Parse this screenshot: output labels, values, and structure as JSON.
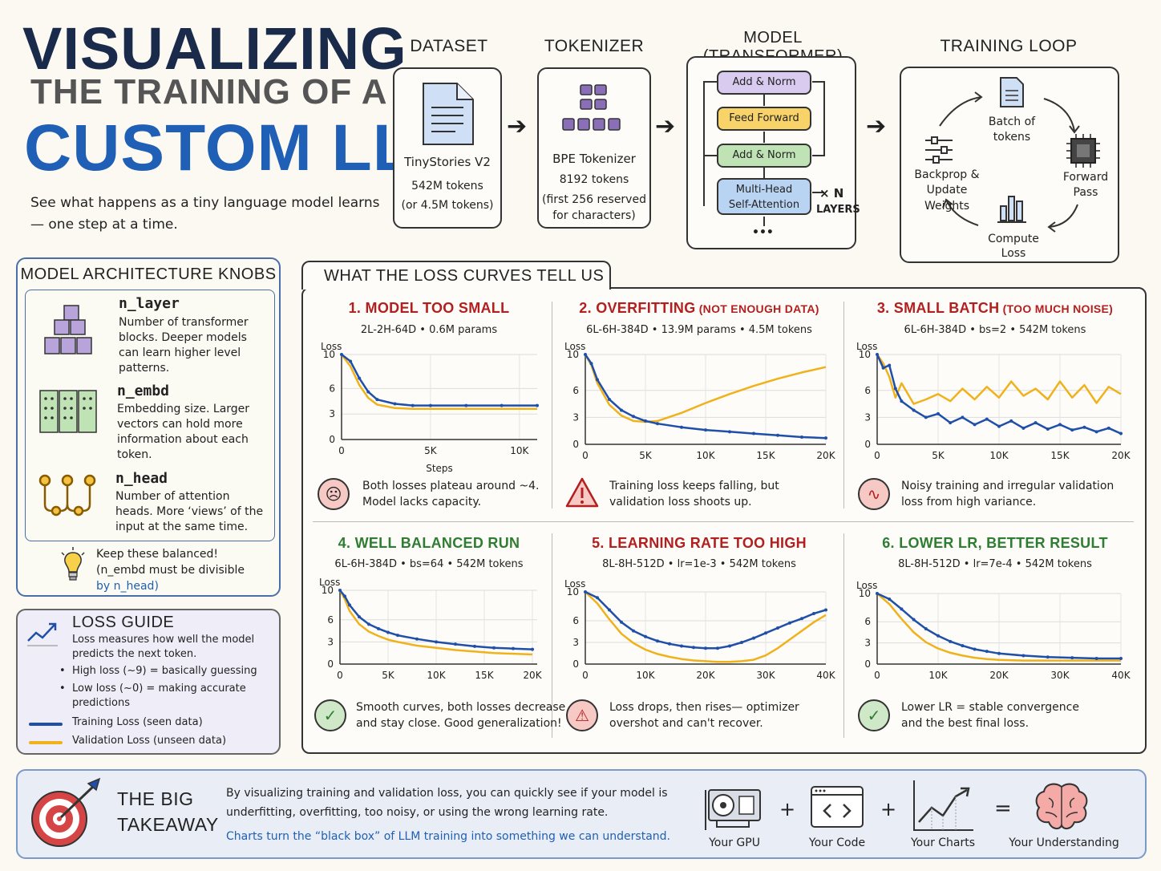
{
  "header": {
    "line1": "VISUALIZING",
    "line2": "THE TRAINING OF A",
    "line3": "CUSTOM LLM",
    "subtitle": "See what happens as a tiny language model learns— one step at a time."
  },
  "pipeline": {
    "dataset": {
      "title": "DATASET",
      "name": "TinyStories V2",
      "tokens": "542M tokens",
      "alt": "(or 4.5M tokens)"
    },
    "tokenizer": {
      "title": "TOKENIZER",
      "name": "BPE Tokenizer",
      "tokens": "8192 tokens",
      "note1": "(first 256 reserved",
      "note2": "for characters)"
    },
    "model": {
      "title": "MODEL (TRANSFORMER)",
      "b1": "Add & Norm",
      "b2": "Feed Forward",
      "b3": "Add & Norm",
      "b4a": "Multi-Head",
      "b4b": "Self-Attention",
      "repeat1": "× N",
      "repeat2": "LAYERS",
      "dots": "•••"
    },
    "loop": {
      "title": "TRAINING LOOP",
      "batch1": "Batch of",
      "batch2": "tokens",
      "fwd1": "Forward",
      "fwd2": "Pass",
      "loss1": "Compute",
      "loss2": "Loss",
      "back1": "Backprop &",
      "back2": "Update Weights"
    }
  },
  "knobs": {
    "title": "MODEL ARCHITECTURE KNOBS",
    "items": [
      {
        "name": "n_layer",
        "color": "#6a3a9a",
        "desc": [
          "Number of transformer",
          "blocks. Deeper models",
          "can learn higher level",
          "patterns."
        ]
      },
      {
        "name": "n_embd",
        "color": "#2e7d32",
        "desc": [
          "Embedding size. Larger",
          "vectors can hold more",
          "information about each",
          "token."
        ]
      },
      {
        "name": "n_head",
        "color": "#c77f00",
        "desc": [
          "Number of attention",
          "heads. More ‘views’ of the",
          "input at the same time."
        ]
      }
    ],
    "tip1": "Keep these balanced!",
    "tip2": "(n_embd must be divisible",
    "tip3": "by n_head)"
  },
  "loss_guide": {
    "title": "LOSS GUIDE",
    "desc1": "Loss measures how well the model",
    "desc2": "predicts the next token.",
    "b1": "High loss (~9) = basically guessing",
    "b2a": "Low loss (~0) = making accurate",
    "b2b": "predictions",
    "train": "Training Loss (seen data)",
    "val": "Validation Loss (unseen data)",
    "train_color": "#1f4fa8",
    "val_color": "#f0b21c"
  },
  "curves": {
    "title": "WHAT THE LOSS CURVES TELL US",
    "panels": [
      {
        "num": "1.",
        "title": "MODEL TOO SMALL",
        "extra": "",
        "color": "#b21f1f",
        "sub": "2L-2H-64D  •  0.6M params",
        "note1": "Both losses plateau around ~4.",
        "note2": "Model lacks capacity.",
        "icon": "☹"
      },
      {
        "num": "2.",
        "title": "OVERFITTING",
        "extra": " (NOT ENOUGH DATA)",
        "color": "#b21f1f",
        "sub": "6L-6H-384D  •  13.9M params  •  4.5M tokens",
        "note1": "Training loss keeps falling, but",
        "note2": "validation loss shoots up.",
        "icon": "!"
      },
      {
        "num": "3.",
        "title": "SMALL BATCH",
        "extra": " (TOO MUCH NOISE)",
        "color": "#b21f1f",
        "sub": "6L-6H-384D  •  bs=2  •  542M tokens",
        "note1": "Noisy training and irregular validation",
        "note2": "loss from high variance.",
        "icon": "∿"
      },
      {
        "num": "4.",
        "title": "WELL BALANCED RUN",
        "extra": "",
        "color": "#2e7d32",
        "sub": "6L-6H-384D  •  bs=64  •  542M tokens",
        "note1": "Smooth curves, both losses decrease",
        "note2": "and stay close. Good generalization!",
        "icon": "✓"
      },
      {
        "num": "5.",
        "title": "LEARNING RATE TOO HIGH",
        "extra": "",
        "color": "#b21f1f",
        "sub": "8L-8H-512D  •  lr=1e-3  •  542M tokens",
        "note1": "Loss drops, then rises— optimizer",
        "note2": "overshot and can't recover.",
        "icon": "⚠"
      },
      {
        "num": "6.",
        "title": "LOWER LR, BETTER RESULT",
        "extra": "",
        "color": "#2e7d32",
        "sub": "8L-8H-512D  •  lr=7e-4  •  542M tokens",
        "note1": "Lower LR = stable convergence",
        "note2": "and the best final loss.",
        "icon": "✓"
      }
    ]
  },
  "chart_data": [
    {
      "type": "line",
      "panel": 1,
      "ylabel": "Loss",
      "xlabel": "Steps",
      "ylim": [
        0,
        10
      ],
      "yticks": [
        0,
        3,
        6,
        10
      ],
      "xlim": [
        0,
        11000
      ],
      "xticks": [
        [
          0,
          "0"
        ],
        [
          5000,
          "5K"
        ],
        [
          10000,
          "10K"
        ]
      ],
      "series": [
        {
          "name": "Training Loss (seen data)",
          "x": [
            0,
            500,
            1000,
            1500,
            2000,
            3000,
            4000,
            5000,
            7000,
            9000,
            11000
          ],
          "y": [
            10,
            9.2,
            7.2,
            5.6,
            4.7,
            4.2,
            4.0,
            4.0,
            4.0,
            4.0,
            4.0
          ]
        },
        {
          "name": "Validation Loss (unseen data)",
          "x": [
            0,
            500,
            1000,
            1500,
            2000,
            3000,
            4000,
            5000,
            7000,
            9000,
            11000
          ],
          "y": [
            10,
            8.6,
            6.4,
            4.9,
            4.1,
            3.7,
            3.6,
            3.6,
            3.6,
            3.6,
            3.6
          ]
        }
      ]
    },
    {
      "type": "line",
      "panel": 2,
      "ylabel": "Loss",
      "ylim": [
        0,
        10
      ],
      "yticks": [
        0,
        3,
        6,
        10
      ],
      "xlim": [
        0,
        20000
      ],
      "xticks": [
        [
          0,
          "0"
        ],
        [
          5000,
          "5K"
        ],
        [
          10000,
          "10K"
        ],
        [
          15000,
          "15K"
        ],
        [
          20000,
          "20K"
        ]
      ],
      "series": [
        {
          "name": "Training Loss (seen data)",
          "x": [
            0,
            500,
            1000,
            2000,
            3000,
            4000,
            5000,
            6000,
            8000,
            10000,
            12000,
            14000,
            16000,
            18000,
            20000
          ],
          "y": [
            10,
            9,
            7.2,
            5,
            3.8,
            3.1,
            2.6,
            2.3,
            1.9,
            1.6,
            1.4,
            1.2,
            1.0,
            0.8,
            0.7
          ]
        },
        {
          "name": "Validation Loss (unseen data)",
          "x": [
            0,
            500,
            1000,
            2000,
            3000,
            4000,
            5000,
            6000,
            8000,
            10000,
            12000,
            14000,
            16000,
            18000,
            20000
          ],
          "y": [
            10,
            8.8,
            6.8,
            4.4,
            3.2,
            2.6,
            2.5,
            2.6,
            3.5,
            4.6,
            5.6,
            6.5,
            7.3,
            8.0,
            8.6
          ]
        }
      ]
    },
    {
      "type": "line",
      "panel": 3,
      "ylabel": "Loss",
      "ylim": [
        0,
        10
      ],
      "yticks": [
        0,
        3,
        6,
        10
      ],
      "xlim": [
        0,
        20000
      ],
      "xticks": [
        [
          0,
          "0"
        ],
        [
          5000,
          "5K"
        ],
        [
          10000,
          "10K"
        ],
        [
          15000,
          "15K"
        ],
        [
          20000,
          "20K"
        ]
      ],
      "series": [
        {
          "name": "Training Loss (seen data)",
          "x": [
            0,
            500,
            1000,
            1500,
            2000,
            3000,
            4000,
            5000,
            6000,
            7000,
            8000,
            9000,
            10000,
            11000,
            12000,
            13000,
            14000,
            15000,
            16000,
            17000,
            18000,
            19000,
            20000
          ],
          "y": [
            10,
            8.5,
            8.8,
            6.2,
            4.8,
            3.8,
            3.0,
            3.4,
            2.4,
            3.0,
            2.2,
            2.8,
            2.0,
            2.6,
            1.8,
            2.4,
            1.7,
            2.2,
            1.6,
            1.9,
            1.4,
            1.8,
            1.2
          ]
        },
        {
          "name": "Validation Loss (unseen data)",
          "x": [
            0,
            500,
            1000,
            1500,
            2000,
            3000,
            4000,
            5000,
            6000,
            7000,
            8000,
            9000,
            10000,
            11000,
            12000,
            13000,
            14000,
            15000,
            16000,
            17000,
            18000,
            19000,
            20000
          ],
          "y": [
            10,
            9,
            7.5,
            5.2,
            6.8,
            4.5,
            5.0,
            5.6,
            4.8,
            6.2,
            5.0,
            6.4,
            5.2,
            7.0,
            5.4,
            6.2,
            5.0,
            7.0,
            5.2,
            6.6,
            4.6,
            6.4,
            5.6
          ]
        }
      ]
    },
    {
      "type": "line",
      "panel": 4,
      "ylabel": "Loss",
      "ylim": [
        0,
        10
      ],
      "yticks": [
        0,
        3,
        6,
        10
      ],
      "xlim": [
        0,
        20500
      ],
      "xticks": [
        [
          0,
          "0"
        ],
        [
          5000,
          "5K"
        ],
        [
          10000,
          "10K"
        ],
        [
          15000,
          "15K"
        ],
        [
          20000,
          "20K"
        ]
      ],
      "series": [
        {
          "name": "Training Loss (seen data)",
          "x": [
            0,
            500,
            1000,
            2000,
            3000,
            4000,
            5000,
            6000,
            8000,
            10000,
            12000,
            14000,
            16000,
            18000,
            20000
          ],
          "y": [
            10,
            9.2,
            8.0,
            6.4,
            5.4,
            4.8,
            4.3,
            3.9,
            3.4,
            3.0,
            2.7,
            2.4,
            2.2,
            2.1,
            2.0
          ]
        },
        {
          "name": "Validation Loss (unseen data)",
          "x": [
            0,
            500,
            1000,
            2000,
            3000,
            4000,
            5000,
            6000,
            8000,
            10000,
            12000,
            14000,
            16000,
            18000,
            20000
          ],
          "y": [
            10,
            8.8,
            7.2,
            5.4,
            4.4,
            3.8,
            3.3,
            3.0,
            2.5,
            2.2,
            1.9,
            1.7,
            1.5,
            1.4,
            1.3
          ]
        }
      ]
    },
    {
      "type": "line",
      "panel": 5,
      "ylabel": "Loss",
      "ylim": [
        0,
        10
      ],
      "yticks": [
        0,
        3,
        6,
        10
      ],
      "xlim": [
        0,
        40000
      ],
      "xticks": [
        [
          0,
          "0"
        ],
        [
          10000,
          "10K"
        ],
        [
          20000,
          "20K"
        ],
        [
          30000,
          "30K"
        ],
        [
          40000,
          "40K"
        ]
      ],
      "series": [
        {
          "name": "Training Loss (seen data)",
          "x": [
            0,
            2000,
            4000,
            6000,
            8000,
            10000,
            12000,
            14000,
            16000,
            18000,
            20000,
            22000,
            24000,
            26000,
            28000,
            30000,
            32000,
            34000,
            36000,
            38000,
            40000
          ],
          "y": [
            10,
            9.2,
            7.5,
            5.8,
            4.6,
            3.8,
            3.2,
            2.8,
            2.5,
            2.3,
            2.2,
            2.2,
            2.5,
            3.0,
            3.6,
            4.3,
            5.0,
            5.7,
            6.3,
            7.0,
            7.5
          ]
        },
        {
          "name": "Validation Loss (unseen data)",
          "x": [
            0,
            2000,
            4000,
            6000,
            8000,
            10000,
            12000,
            14000,
            16000,
            18000,
            20000,
            22000,
            24000,
            26000,
            28000,
            30000,
            32000,
            34000,
            36000,
            38000,
            40000
          ],
          "y": [
            10,
            8.4,
            6.2,
            4.2,
            2.9,
            2.0,
            1.4,
            1.0,
            0.7,
            0.5,
            0.4,
            0.3,
            0.3,
            0.4,
            0.6,
            1.2,
            2.2,
            3.4,
            4.6,
            5.8,
            6.8
          ]
        }
      ]
    },
    {
      "type": "line",
      "panel": 6,
      "ylabel": "Loss",
      "ylim": [
        0,
        10
      ],
      "yticks": [
        0,
        3,
        6,
        10
      ],
      "xlim": [
        0,
        40000
      ],
      "xticks": [
        [
          0,
          "0"
        ],
        [
          10000,
          "10K"
        ],
        [
          20000,
          "20K"
        ],
        [
          30000,
          "30K"
        ],
        [
          40000,
          "40K"
        ]
      ],
      "series": [
        {
          "name": "Training Loss (seen data)",
          "x": [
            0,
            2000,
            4000,
            6000,
            8000,
            10000,
            12000,
            14000,
            16000,
            18000,
            20000,
            24000,
            28000,
            32000,
            36000,
            40000
          ],
          "y": [
            10,
            9.2,
            7.8,
            6.3,
            5.0,
            4.0,
            3.2,
            2.6,
            2.1,
            1.8,
            1.5,
            1.2,
            1.0,
            0.9,
            0.8,
            0.8
          ]
        },
        {
          "name": "Validation Loss (unseen data)",
          "x": [
            0,
            2000,
            4000,
            6000,
            8000,
            10000,
            12000,
            14000,
            16000,
            18000,
            20000,
            24000,
            28000,
            32000,
            36000,
            40000
          ],
          "y": [
            10,
            8.5,
            6.4,
            4.5,
            3.1,
            2.2,
            1.6,
            1.2,
            0.9,
            0.7,
            0.6,
            0.5,
            0.5,
            0.5,
            0.5,
            0.5
          ]
        }
      ]
    }
  ],
  "takeaway": {
    "title1": "THE BIG",
    "title2": "TAKEAWAY",
    "text1": "By visualizing training and validation loss, you can quickly see if your model is",
    "text2": "underfitting, overfitting, too noisy, or using the wrong learning rate.",
    "highlight": "Charts turn the “black box” of LLM training into something we can understand.",
    "plus": "+",
    "eq": "=",
    "gpu": "Your GPU",
    "code": "Your Code",
    "charts": "Your Charts",
    "understanding": "Your Understanding"
  }
}
